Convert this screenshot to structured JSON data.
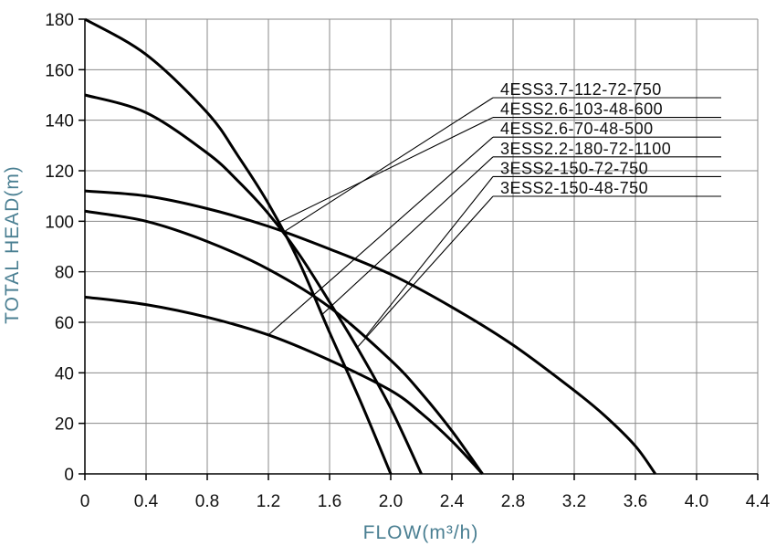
{
  "chart_data": {
    "type": "line",
    "xlabel": "FLOW(m³/h)",
    "ylabel": "TOTAL HEAD(m)",
    "axis_label_color": "#4a7f92",
    "xlim": [
      0,
      4.4
    ],
    "ylim": [
      0,
      180
    ],
    "x_ticks": [
      "0",
      "0.4",
      "0.8",
      "1.2",
      "1.6",
      "2.0",
      "2.4",
      "2.8",
      "3.2",
      "3.6",
      "4.0",
      "4.4"
    ],
    "y_ticks": [
      "0",
      "20",
      "40",
      "60",
      "80",
      "100",
      "120",
      "140",
      "160",
      "180"
    ],
    "grid": true,
    "series": [
      {
        "name": "4ESS3.7-112-72-750",
        "x": [
          0,
          0.4,
          0.8,
          1.2,
          1.6,
          2.0,
          2.4,
          2.8,
          3.2,
          3.4,
          3.6,
          3.73
        ],
        "y": [
          112,
          110,
          105,
          98,
          89,
          79,
          66,
          51,
          33,
          23,
          11,
          0
        ],
        "callout_x": 1.3
      },
      {
        "name": "4ESS2.6-103-48-600",
        "x": [
          0,
          0.4,
          0.8,
          1.0,
          1.2,
          1.4,
          1.6,
          1.8,
          2.0,
          2.2
        ],
        "y": [
          150,
          143,
          127,
          116,
          103,
          87,
          68,
          48,
          26,
          0
        ],
        "callout_x": 1.25
      },
      {
        "name": "4ESS2.6-70-48-500",
        "x": [
          0,
          0.4,
          0.8,
          1.2,
          1.6,
          2.0,
          2.2,
          2.4,
          2.6
        ],
        "y": [
          70,
          67,
          62,
          55,
          45,
          33,
          24,
          13,
          0
        ],
        "callout_x": 1.2
      },
      {
        "name": "3ESS2.2-180-72-1100",
        "x": [
          0,
          0.4,
          0.8,
          1.0,
          1.2,
          1.4,
          1.6,
          1.8,
          2.0
        ],
        "y": [
          180,
          166,
          143,
          126,
          107,
          84,
          56,
          29,
          0
        ],
        "callout_x": 1.55
      },
      {
        "name": "3ESS2-150-72-750",
        "x": [
          0,
          0.4,
          0.8,
          1.2,
          1.6,
          2.0,
          2.2,
          2.4,
          2.6
        ],
        "y": [
          104,
          100,
          92,
          81,
          66,
          45,
          32,
          17,
          0
        ],
        "callout_x": 1.83
      },
      {
        "name": "3ESS2-150-48-750",
        "callout_x": 1.78,
        "callout_series": "4ESS2.6-103-48-600"
      }
    ]
  }
}
